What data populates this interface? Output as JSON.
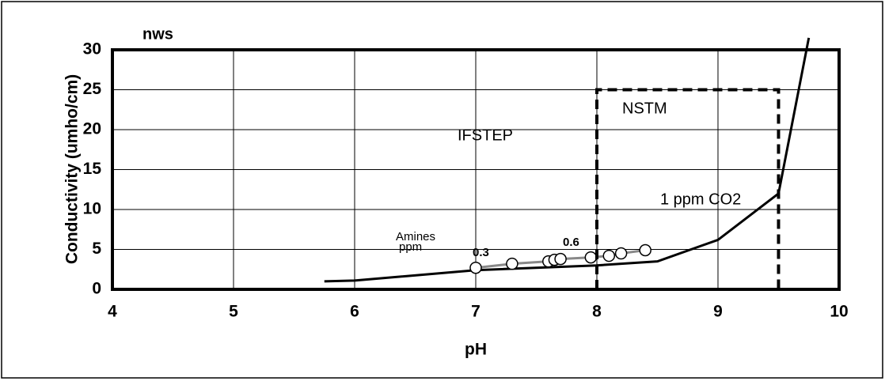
{
  "chart_data": {
    "type": "line",
    "title": "nws",
    "xlabel": "pH",
    "ylabel": "Conductivity (umho/cm)",
    "xlim": [
      4,
      10
    ],
    "xticks": [
      4,
      5,
      6,
      7,
      8,
      9,
      10
    ],
    "ylim": [
      0,
      30
    ],
    "yticks": [
      0,
      5,
      10,
      15,
      20,
      25,
      30
    ],
    "grid": true,
    "series": [
      {
        "name": "1 ppm CO2",
        "color": "#000000",
        "style": "solid",
        "x": [
          5.75,
          6,
          7,
          8,
          8.5,
          9,
          9.5,
          9.75
        ],
        "values": [
          1.0,
          1.1,
          2.4,
          3.0,
          3.5,
          6.2,
          12,
          31.5
        ]
      },
      {
        "name": "Amines ppm",
        "color": "#888888",
        "style": "markers",
        "x": [
          7,
          7.3,
          7.6,
          7.65,
          7.7,
          7.95,
          8.1,
          8.2,
          8.4
        ],
        "values": [
          2.7,
          3.2,
          3.5,
          3.7,
          3.8,
          4.0,
          4.2,
          4.5,
          4.9
        ]
      },
      {
        "name": "NSTM",
        "color": "#000000",
        "style": "dashed",
        "x": [
          8,
          8,
          9.5,
          9.5
        ],
        "values": [
          0,
          25,
          25,
          0
        ]
      }
    ],
    "annotations": [
      "IFSTEP",
      "0.3",
      "0.6"
    ]
  }
}
